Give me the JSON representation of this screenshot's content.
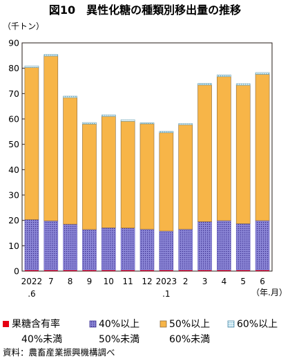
{
  "chart_data": {
    "type": "bar",
    "stacked": true,
    "title": "図10　異性化糖の種類別移出量の推移",
    "ylabel": "（千トン）",
    "xlabel": "（年.月）",
    "ylim": [
      0,
      90
    ],
    "yticks": [
      0,
      10,
      20,
      30,
      40,
      50,
      60,
      70,
      80,
      90
    ],
    "grid": false,
    "legend_position": "bottom",
    "categories": [
      "2022.6",
      "7",
      "8",
      "9",
      "10",
      "11",
      "12",
      "2023.1",
      "2",
      "3",
      "4",
      "5",
      "6"
    ],
    "category_labels": [
      [
        "2022",
        ".6"
      ],
      [
        "7",
        ""
      ],
      [
        "8",
        ""
      ],
      [
        "9",
        ""
      ],
      [
        "10",
        ""
      ],
      [
        "11",
        ""
      ],
      [
        "12",
        ""
      ],
      [
        "2023",
        ".1"
      ],
      [
        "2",
        ""
      ],
      [
        "3",
        ""
      ],
      [
        "4",
        ""
      ],
      [
        "5",
        ""
      ],
      [
        "6",
        ""
      ]
    ],
    "series": [
      {
        "name": "果糖含有率40%未満",
        "legend_lines": [
          "果糖含有率",
          "40%未満"
        ],
        "color": "#e60012",
        "pattern": "solid",
        "values": [
          0.4,
          0.4,
          0.4,
          0.4,
          0.4,
          0.4,
          0.4,
          0.4,
          0.4,
          0.4,
          0.4,
          0.4,
          0.4
        ]
      },
      {
        "name": "40%以上50%未満",
        "legend_lines": [
          "40%以上",
          "50%未満"
        ],
        "color": "#8b86d6",
        "pattern": "dots",
        "values": [
          19.9,
          19.4,
          18.1,
          16.0,
          16.7,
          16.6,
          16.1,
          15.4,
          16.1,
          19.1,
          19.5,
          18.3,
          19.5
        ]
      },
      {
        "name": "50%以上60%未満",
        "legend_lines": [
          "50%以上",
          "60%未満"
        ],
        "color": "#f7b548",
        "pattern": "solid",
        "values": [
          60.0,
          65.0,
          49.9,
          41.6,
          43.9,
          42.1,
          41.6,
          38.8,
          41.2,
          53.9,
          56.8,
          54.6,
          57.7
        ]
      },
      {
        "name": "60%以上",
        "legend_lines": [
          "60%以上",
          ""
        ],
        "color": "#cfe9f2",
        "pattern": "dots",
        "values": [
          0.6,
          0.6,
          0.6,
          0.6,
          0.6,
          0.6,
          0.4,
          0.5,
          0.5,
          0.6,
          0.7,
          0.6,
          0.7
        ]
      }
    ]
  },
  "footer": {
    "source": "資料：農畜産業振興機構調べ"
  }
}
